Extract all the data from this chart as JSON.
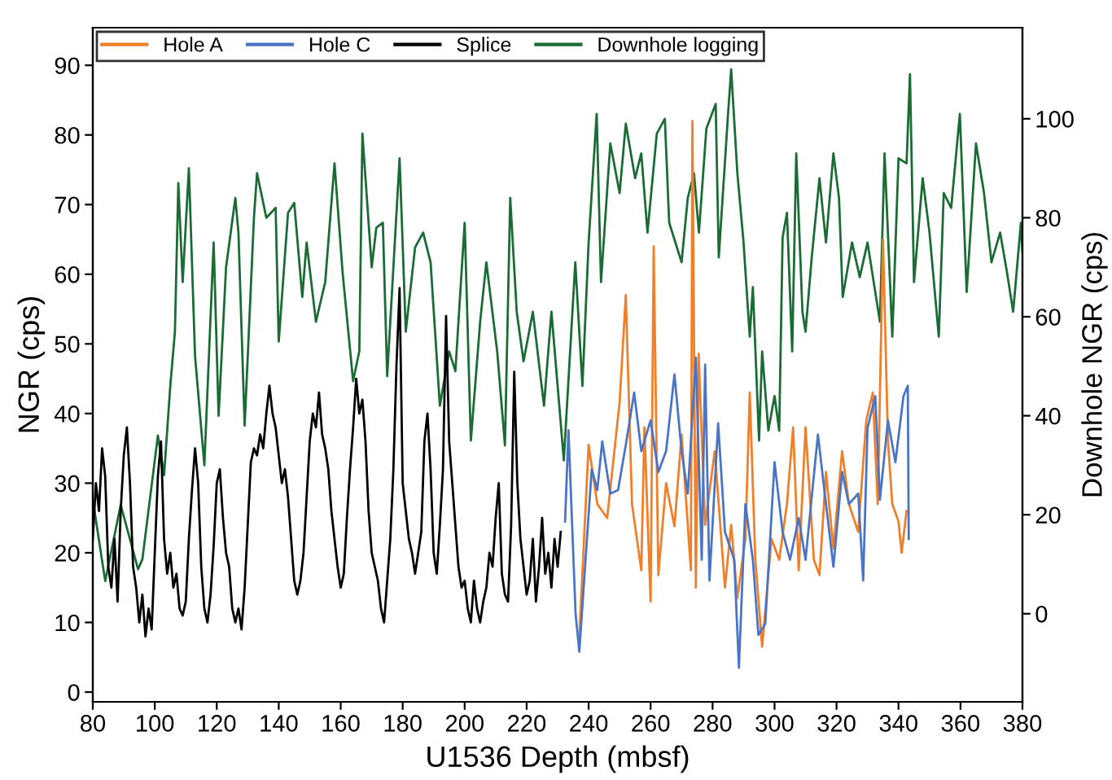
{
  "chart_data": {
    "type": "line",
    "xlabel": "U1536 Depth (mbsf)",
    "ylabel": "NGR (cps)",
    "y2label": "Downhole NGR (cps)",
    "legend": "top left",
    "grid": false,
    "marker": "none",
    "line_style": "solid",
    "xlim": [
      80,
      380
    ],
    "xticks": [
      80,
      100,
      120,
      140,
      160,
      180,
      200,
      220,
      240,
      260,
      280,
      300,
      320,
      340,
      360,
      380
    ],
    "ylim": [
      -1.4,
      95.4
    ],
    "yticks": [
      0,
      10,
      20,
      30,
      40,
      50,
      60,
      70,
      80,
      90
    ],
    "y2lim": [
      -17.8,
      118.4
    ],
    "y2ticks": [
      0,
      20,
      40,
      60,
      80,
      100
    ],
    "series": [
      {
        "name": "Hole A",
        "color": "#f07f2a",
        "x": [
          237,
          240,
          242.8,
          246,
          250,
          252,
          254,
          257,
          258,
          260,
          261,
          262.5,
          265,
          267.7,
          270,
          273,
          273.5,
          274.6,
          275.5,
          277.6,
          280.7,
          284,
          286,
          288,
          290.6,
          292,
          293.8,
          296,
          299,
          301.5,
          304,
          306,
          307.8,
          310,
          312.7,
          314.5,
          316.6,
          319,
          321.8,
          324,
          327,
          329.6,
          331.7,
          333.3,
          335,
          336.6,
          338,
          340,
          341,
          342.6
        ],
        "values": [
          8,
          35.5,
          27,
          25,
          41.6,
          57,
          27,
          17.5,
          38,
          13,
          64,
          16.8,
          30,
          23.8,
          37,
          17.5,
          82,
          15,
          48.6,
          24,
          34.6,
          15,
          24,
          13.5,
          22,
          43,
          19,
          6.5,
          22,
          19,
          27,
          38,
          17.5,
          38,
          19,
          16.8,
          31.6,
          20.6,
          34.6,
          27,
          23,
          39,
          43,
          27,
          65,
          36,
          27,
          24.5,
          20,
          26
        ]
      },
      {
        "name": "Hole C",
        "color": "#4a74c4",
        "x": [
          232.4,
          233.5,
          235.8,
          237,
          239,
          241,
          242.8,
          244.4,
          247,
          249.5,
          252,
          254.7,
          257,
          260,
          262.5,
          265,
          267.7,
          270,
          272,
          274.6,
          276.5,
          277.6,
          279,
          281.8,
          284,
          287,
          288.5,
          290.6,
          293,
          294.8,
          297,
          300,
          302.6,
          305,
          307.8,
          310,
          314,
          316.6,
          319,
          321.8,
          324,
          327,
          328.6,
          330,
          332.5,
          334,
          336.6,
          339,
          341.6,
          343,
          343.3
        ],
        "values": [
          24.5,
          37.6,
          11.2,
          5.8,
          19,
          32,
          29,
          36,
          28.5,
          29,
          35.5,
          43,
          34.6,
          39,
          31.6,
          34.6,
          45.6,
          34.6,
          28.5,
          48,
          19,
          47,
          16,
          38.6,
          23,
          19,
          3.5,
          27,
          19,
          8.2,
          9.8,
          33,
          23,
          19,
          25,
          19,
          37,
          27,
          18,
          31.6,
          27,
          28.5,
          16,
          37.9,
          42.5,
          27.6,
          39,
          33,
          42.5,
          44,
          22
        ]
      },
      {
        "name": "Splice",
        "color": "#000000",
        "x": [
          80,
          81,
          82,
          83,
          84,
          85,
          86,
          87,
          88,
          89,
          90,
          91,
          92,
          93,
          94,
          95,
          96,
          97,
          98,
          99,
          100,
          101,
          102,
          103,
          104,
          105,
          106,
          107,
          108,
          109,
          110,
          111,
          112,
          113,
          114,
          115,
          116,
          117,
          118,
          119,
          120,
          121,
          122,
          123,
          124,
          125,
          126,
          127,
          128,
          129,
          130,
          131,
          132,
          133,
          134,
          135,
          136,
          137,
          138,
          139,
          140,
          141,
          142,
          143,
          144,
          145,
          146,
          147,
          148,
          149,
          150,
          151,
          152,
          153,
          154,
          155,
          156,
          157,
          158,
          159,
          160,
          161,
          162,
          163,
          164,
          165,
          166,
          167,
          168,
          169,
          170,
          171,
          172,
          173,
          174,
          175,
          176,
          177,
          178,
          179,
          180,
          181,
          182,
          183,
          184,
          185,
          186,
          187,
          188,
          189,
          190,
          191,
          192,
          193,
          194,
          195,
          196,
          197,
          198,
          199,
          200,
          201,
          202,
          203,
          204,
          205,
          206,
          207,
          208,
          209,
          210,
          211,
          212,
          213,
          214,
          215,
          216,
          217,
          218,
          219,
          220,
          221,
          222,
          223,
          224,
          225,
          226,
          227,
          228,
          229,
          230,
          231
        ],
        "values": [
          22,
          30,
          26,
          35,
          31,
          18,
          15,
          22,
          13,
          26,
          34,
          38,
          30,
          18,
          15,
          10,
          14,
          8,
          12,
          9,
          20,
          31,
          36,
          22,
          17,
          20,
          15,
          17,
          12,
          11,
          13,
          22,
          29,
          35,
          30,
          18,
          12,
          10,
          14,
          21,
          30,
          32,
          25,
          20,
          18,
          12,
          10,
          12,
          9,
          15,
          24,
          33,
          35,
          34,
          37,
          35,
          40,
          44,
          40,
          38,
          34,
          30,
          32,
          28,
          22,
          16,
          14,
          16,
          20,
          28,
          36,
          40,
          38,
          43,
          37,
          35,
          32,
          26,
          22,
          18,
          15,
          17,
          25,
          32,
          38,
          45,
          40,
          42,
          36,
          26,
          20,
          18,
          16,
          12,
          10,
          16,
          22,
          32,
          47,
          58,
          30,
          26,
          22,
          20,
          17,
          20,
          23,
          36,
          40,
          32,
          20,
          17,
          24,
          32,
          54,
          36,
          30,
          24,
          18,
          15,
          16,
          12,
          10,
          16,
          12,
          10,
          13,
          15,
          20,
          18,
          25,
          30,
          17,
          14,
          13,
          24,
          46,
          30,
          22,
          18,
          14,
          16,
          22,
          13,
          18,
          25,
          17,
          20,
          15,
          22,
          18,
          23
        ]
      },
      {
        "name": "Downhole logging",
        "color": "#1b6b35",
        "axis": "y2",
        "x": [
          80.5,
          84,
          89,
          94.6,
          96,
          101,
          103,
          105,
          106.5,
          107.6,
          109,
          111,
          113,
          116,
          119,
          120.6,
          123,
          126,
          127,
          129,
          132,
          133,
          136,
          139,
          140,
          143,
          145,
          147.6,
          149,
          152,
          155,
          158,
          160.6,
          164,
          166,
          167,
          170,
          171.5,
          173.6,
          175,
          179,
          181,
          184,
          186.6,
          189,
          192,
          195,
          197,
          200,
          202,
          205,
          207,
          210.5,
          213,
          214.7,
          216.8,
          219,
          222,
          225.6,
          228,
          230,
          232,
          235.7,
          238,
          240,
          242.6,
          244,
          247,
          250,
          252,
          255,
          257,
          259,
          262,
          264.6,
          266,
          270,
          272,
          274,
          275.6,
          278,
          281,
          282,
          285,
          286,
          288,
          290,
          292,
          293,
          295,
          296,
          298,
          300,
          301.5,
          302.6,
          304,
          305.7,
          307,
          309,
          310,
          312,
          314.5,
          316.6,
          319,
          320.8,
          322,
          325,
          327.5,
          330,
          334,
          335.5,
          338,
          340,
          342.6,
          343.7,
          345,
          347.8,
          350,
          353,
          354.6,
          357,
          359.8,
          362,
          365,
          367.6,
          370,
          372.8,
          375,
          377,
          379.5,
          380
        ],
        "values": [
          21,
          6.6,
          22,
          9,
          11,
          36,
          28,
          46,
          57,
          87,
          67,
          90,
          52,
          30,
          75,
          40,
          70,
          84,
          77,
          38,
          80,
          89,
          80,
          82,
          55,
          81,
          83,
          64,
          75,
          59,
          67,
          91,
          69,
          47,
          53,
          97,
          70,
          78,
          79,
          48,
          92,
          57,
          74,
          77,
          71,
          42,
          53,
          49,
          79,
          35,
          59,
          71,
          53,
          34,
          84,
          61,
          51,
          61,
          42,
          61,
          46,
          31,
          71,
          46,
          75,
          101,
          67,
          95,
          85,
          99,
          88,
          93,
          77,
          97,
          100,
          79,
          71,
          84,
          89,
          77,
          98,
          103,
          72,
          101,
          110,
          89,
          75,
          56,
          66,
          35,
          53,
          37,
          44,
          37,
          76,
          81,
          53,
          93,
          61,
          57,
          72,
          88,
          75,
          93,
          84,
          64,
          75,
          68,
          75,
          59,
          93,
          56,
          92,
          91,
          109,
          67,
          88,
          77,
          56,
          85,
          82,
          101,
          65,
          95,
          85,
          71,
          77,
          69,
          61,
          79,
          73
        ]
      }
    ]
  }
}
